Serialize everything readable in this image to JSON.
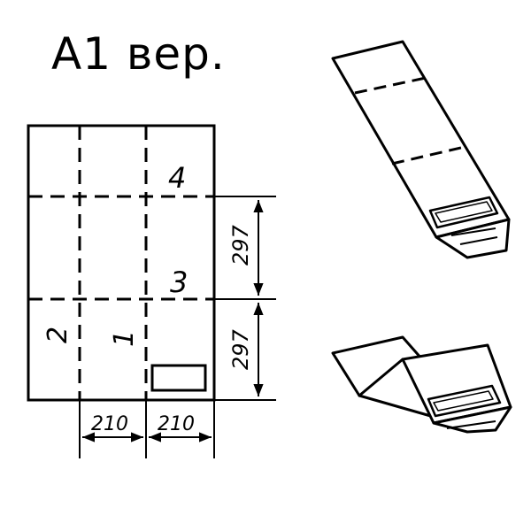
{
  "title": "A1 вер.",
  "sheet": {
    "panel_numbers": [
      "1",
      "2",
      "3",
      "4"
    ]
  },
  "dimensions": {
    "height_upper": "297",
    "height_lower": "297",
    "width_left": "210",
    "width_right": "210"
  },
  "colors": {
    "ink": "#000000",
    "paper": "#ffffff"
  }
}
